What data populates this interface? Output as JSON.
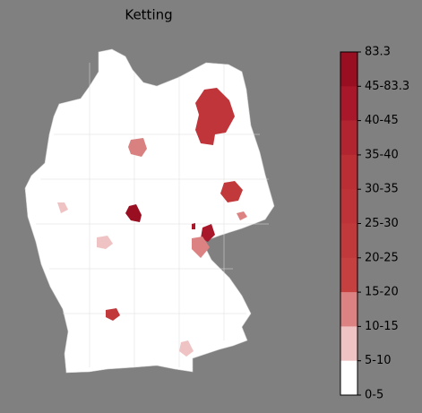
{
  "title": "Ketting",
  "colorbar": {
    "labels": [
      "83.3",
      "45-83.3",
      "40-45",
      "35-40",
      "30-35",
      "25-30",
      "20-25",
      "15-20",
      "10-15",
      "5-10",
      "0-5"
    ],
    "colors": [
      "#9a0e22",
      "#a8182a",
      "#b22530",
      "#ba2e34",
      "#be3337",
      "#c2393b",
      "#c6403f",
      "#dc8282",
      "#efc3c3",
      "#ffffff"
    ]
  }
}
